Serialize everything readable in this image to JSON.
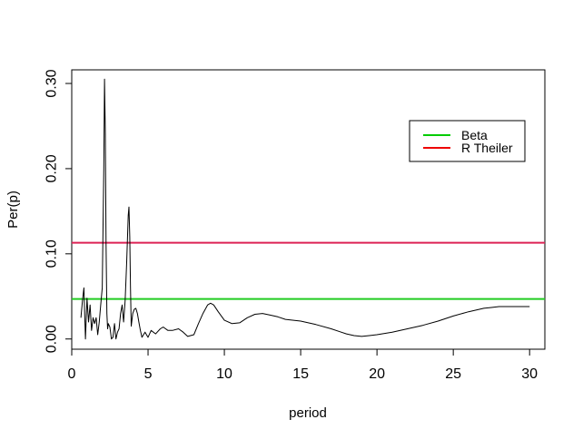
{
  "chart_data": {
    "type": "line",
    "title": "",
    "xlabel": "period",
    "ylabel": "Per(p)",
    "xlim": [
      0,
      31
    ],
    "ylim": [
      -0.012,
      0.316
    ],
    "x_ticks": [
      0,
      5,
      10,
      15,
      20,
      25,
      30
    ],
    "y_ticks": [
      0.0,
      0.1,
      0.2,
      0.3
    ],
    "y_tick_labels": [
      "0.00",
      "0.10",
      "0.20",
      "0.30"
    ],
    "grid": false,
    "legend_position": "top-right",
    "series": [
      {
        "color": "#000000",
        "x": [
          0.6,
          0.7,
          0.8,
          0.9,
          1.0,
          1.1,
          1.2,
          1.3,
          1.4,
          1.5,
          1.6,
          1.7,
          1.8,
          1.9,
          2.0,
          2.1,
          2.15,
          2.2,
          2.25,
          2.3,
          2.35,
          2.4,
          2.5,
          2.6,
          2.7,
          2.8,
          2.9,
          3.0,
          3.1,
          3.2,
          3.3,
          3.4,
          3.5,
          3.6,
          3.7,
          3.75,
          3.8,
          3.85,
          3.9,
          4.0,
          4.1,
          4.2,
          4.3,
          4.4,
          4.5,
          4.6,
          4.8,
          5.0,
          5.2,
          5.5,
          5.8,
          6.0,
          6.3,
          6.6,
          7.0,
          7.3,
          7.6,
          8.0,
          8.3,
          8.6,
          8.9,
          9.1,
          9.3,
          9.6,
          10.0,
          10.5,
          11.0,
          11.5,
          12.0,
          12.5,
          13.0,
          13.5,
          14.0,
          15.0,
          16.0,
          17.0,
          17.5,
          18.0,
          18.5,
          19.0,
          19.5,
          20.0,
          21.0,
          22.0,
          23.0,
          24.0,
          25.0,
          26.0,
          27.0,
          27.5,
          28.0,
          28.5,
          29.0,
          29.5,
          30.0
        ],
        "values": [
          0.025,
          0.045,
          0.06,
          0.0,
          0.048,
          0.02,
          0.04,
          0.01,
          0.025,
          0.018,
          0.025,
          0.005,
          0.02,
          0.04,
          0.06,
          0.2,
          0.305,
          0.24,
          0.11,
          0.03,
          0.012,
          0.018,
          0.014,
          0.0,
          0.002,
          0.018,
          0.0,
          0.008,
          0.012,
          0.03,
          0.04,
          0.02,
          0.045,
          0.09,
          0.145,
          0.155,
          0.12,
          0.06,
          0.015,
          0.03,
          0.035,
          0.036,
          0.03,
          0.02,
          0.01,
          0.002,
          0.008,
          0.002,
          0.01,
          0.006,
          0.012,
          0.014,
          0.01,
          0.01,
          0.012,
          0.008,
          0.003,
          0.005,
          0.018,
          0.03,
          0.04,
          0.042,
          0.04,
          0.032,
          0.022,
          0.018,
          0.019,
          0.025,
          0.029,
          0.03,
          0.028,
          0.026,
          0.023,
          0.021,
          0.017,
          0.012,
          0.009,
          0.006,
          0.004,
          0.003,
          0.004,
          0.005,
          0.008,
          0.012,
          0.016,
          0.021,
          0.027,
          0.032,
          0.036,
          0.037,
          0.038,
          0.038,
          0.038,
          0.038,
          0.038
        ]
      }
    ],
    "hlines": [
      {
        "name": "Beta",
        "y": 0.047,
        "color": "#22cc22"
      },
      {
        "name": "R Theiler",
        "y": 0.113,
        "color": "#dd2255"
      }
    ],
    "legend": [
      {
        "label": "Beta",
        "color": "#00cc00"
      },
      {
        "label": "R Theiler",
        "color": "#ee0000"
      }
    ]
  }
}
